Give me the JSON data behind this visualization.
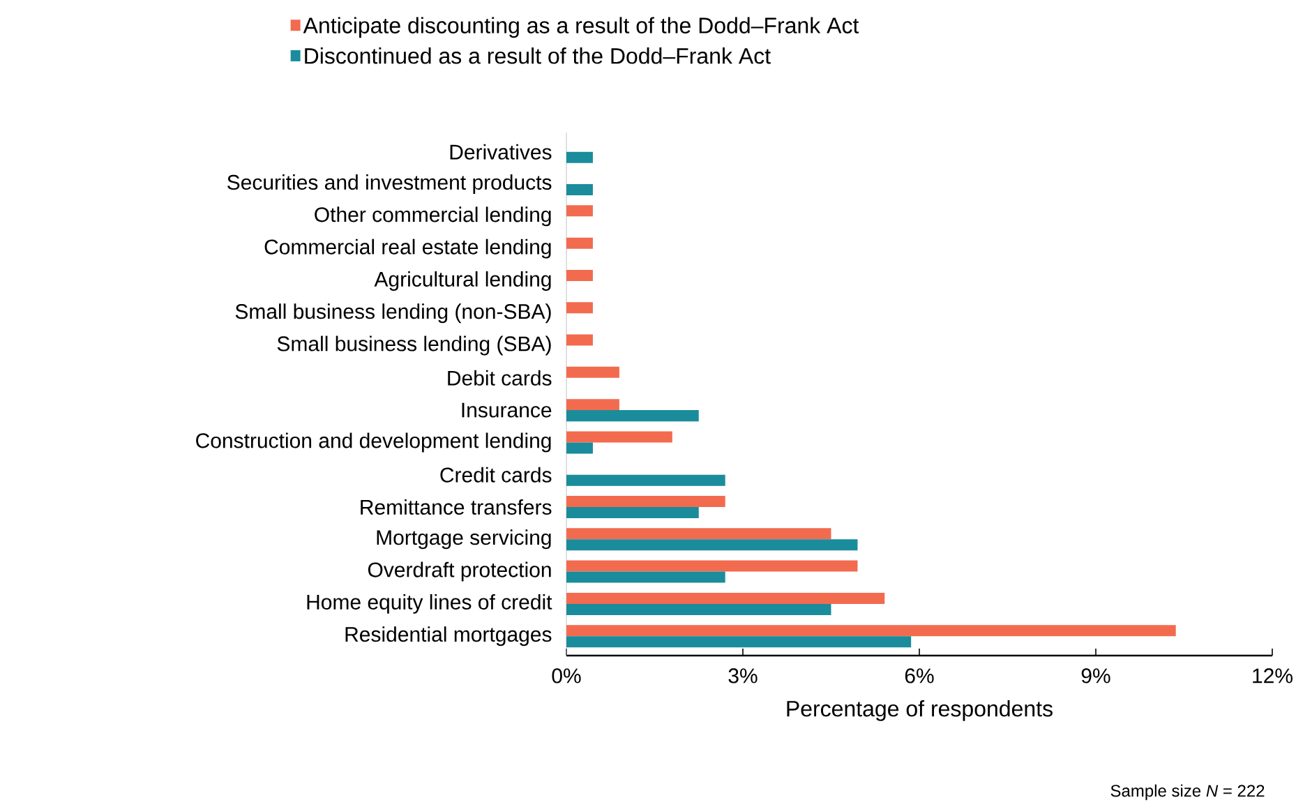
{
  "chart_data": {
    "type": "bar",
    "orientation": "horizontal",
    "categories": [
      "Derivatives",
      "Securities and investment products",
      "Other commercial lending",
      "Commercial real estate lending",
      "Agricultural lending",
      "Small business lending (non-SBA)",
      "Small business lending (SBA)",
      "Debit cards",
      "Insurance",
      "Construction and development lending",
      "Credit cards",
      "Remittance transfers",
      "Mortgage servicing",
      "Overdraft protection",
      "Home equity lines of credit",
      "Residential mortgages"
    ],
    "series": [
      {
        "name": "Anticipate discounting as a result of the Dodd–Frank Act",
        "color": "#f26b4f",
        "values": [
          null,
          null,
          0.45,
          0.45,
          0.45,
          0.45,
          0.45,
          0.9,
          0.9,
          1.8,
          null,
          2.7,
          4.5,
          4.95,
          5.41,
          10.36
        ]
      },
      {
        "name": "Discontinued as a result of the Dodd–Frank Act",
        "color": "#1a8c9c",
        "values": [
          0.45,
          0.45,
          null,
          null,
          null,
          null,
          null,
          null,
          2.25,
          0.45,
          2.7,
          2.25,
          4.95,
          2.7,
          4.5,
          5.86
        ]
      }
    ],
    "xlabel": "Percentage of respondents",
    "xlim": [
      0,
      12
    ],
    "xticks": [
      {
        "value": 0,
        "label": "0%"
      },
      {
        "value": 3,
        "label": "3%"
      },
      {
        "value": 6,
        "label": "6%"
      },
      {
        "value": 9,
        "label": "9%"
      },
      {
        "value": 12,
        "label": "12%"
      }
    ],
    "legend": "top",
    "grid": false,
    "annotations": [
      "Sample size *N* = 222"
    ]
  }
}
